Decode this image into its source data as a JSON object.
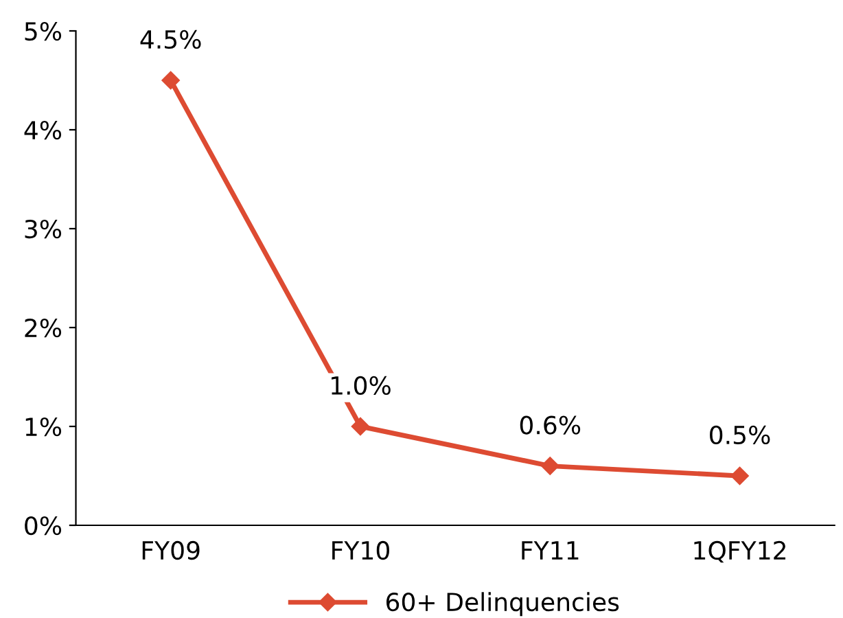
{
  "chart_data": {
    "type": "line",
    "categories": [
      "FY09",
      "FY10",
      "FY11",
      "1QFY12"
    ],
    "series": [
      {
        "name": "60+ Delinquencies",
        "color": "#dd4b32",
        "values": [
          4.5,
          1.0,
          0.6,
          0.5
        ],
        "value_labels": [
          "4.5%",
          "1.0%",
          "0.6%",
          "0.5%"
        ]
      }
    ],
    "ylim": [
      0,
      5
    ],
    "yticks": [
      {
        "value": 0,
        "label": "0%"
      },
      {
        "value": 1,
        "label": "1%"
      },
      {
        "value": 2,
        "label": "2%"
      },
      {
        "value": 3,
        "label": "3%"
      },
      {
        "value": 4,
        "label": "4%"
      },
      {
        "value": 5,
        "label": "5%"
      }
    ],
    "marker": "diamond",
    "line_style": "solid",
    "legend": "bottom",
    "grid": false
  }
}
